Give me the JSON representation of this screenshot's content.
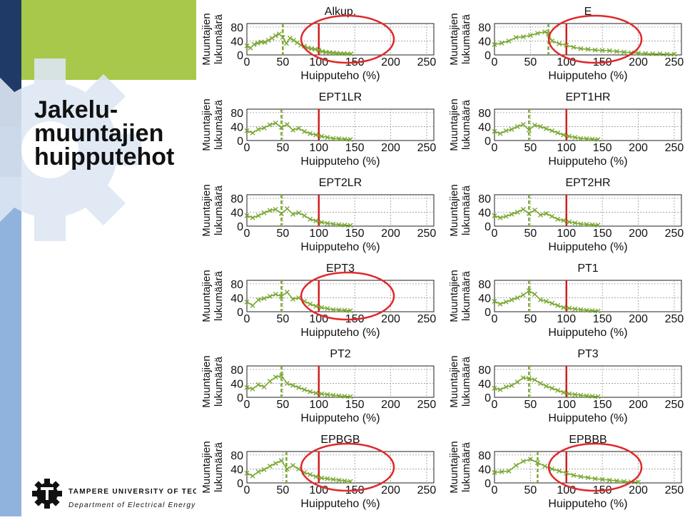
{
  "slide": {
    "title_lines": [
      "Jakelu-",
      "muuntajien",
      "huipputehot"
    ]
  },
  "logo": {
    "line1": "TAMPERE UNIVERSITY OF TECHNO",
    "line2": "Department of Electrical Energy En"
  },
  "colors": {
    "series": "#7aa832",
    "marker_line": "#d11f1f",
    "ellipse": "#e0282a",
    "left_dark": "#1f3a66",
    "left_mid": "#2e5c9a",
    "left_light": "#8fb3dc",
    "left_green": "#a7c84a"
  },
  "chart_data": [
    {
      "type": "line",
      "title": "Alkup.",
      "xlabel": "Huipputeho (%)",
      "ylabel": "Muuntajien lukumäärä",
      "xticks": [
        0,
        50,
        100,
        150,
        200,
        250
      ],
      "yticks": [
        0,
        40,
        80
      ],
      "xlim": [
        0,
        260
      ],
      "ylim": [
        0,
        90
      ],
      "grid": true,
      "green_dashed_x": 50,
      "red_line_x": 100,
      "highlight_ellipse": true,
      "x": [
        0,
        5,
        10,
        15,
        20,
        25,
        30,
        35,
        40,
        45,
        50,
        55,
        60,
        65,
        70,
        75,
        80,
        85,
        90,
        95,
        100,
        105,
        110,
        115,
        120,
        125,
        130,
        135,
        140,
        145
      ],
      "values": [
        26,
        20,
        30,
        34,
        37,
        36,
        42,
        48,
        55,
        60,
        50,
        33,
        48,
        42,
        35,
        28,
        25,
        20,
        18,
        16,
        14,
        10,
        8,
        7,
        6,
        5,
        4,
        4,
        3,
        3
      ]
    },
    {
      "type": "line",
      "title": "E",
      "xlabel": "Huipputeho (%)",
      "ylabel": "Muuntajien lukumäärä",
      "xticks": [
        0,
        50,
        100,
        150,
        200,
        250
      ],
      "yticks": [
        0,
        40,
        80
      ],
      "xlim": [
        0,
        260
      ],
      "ylim": [
        0,
        90
      ],
      "grid": true,
      "green_dashed_x": 75,
      "red_line_x": 100,
      "highlight_ellipse": true,
      "x": [
        0,
        10,
        20,
        30,
        40,
        50,
        60,
        70,
        75,
        80,
        90,
        100,
        110,
        120,
        130,
        140,
        150,
        160,
        170,
        180,
        190,
        200,
        210,
        220,
        230,
        240,
        250
      ],
      "values": [
        30,
        34,
        40,
        50,
        52,
        56,
        62,
        66,
        60,
        40,
        32,
        28,
        22,
        18,
        16,
        14,
        13,
        12,
        10,
        8,
        6,
        5,
        4,
        3,
        3,
        2,
        2
      ]
    },
    {
      "type": "line",
      "title": "EPT1LR",
      "xlabel": "Huipputeho (%)",
      "ylabel": "Muuntajien lukumäärä",
      "xticks": [
        0,
        50,
        100,
        150,
        200,
        250
      ],
      "yticks": [
        0,
        40,
        80
      ],
      "xlim": [
        0,
        260
      ],
      "ylim": [
        0,
        90
      ],
      "grid": true,
      "green_dashed_x": 48,
      "red_line_x": 100,
      "highlight_ellipse": false,
      "x": [
        0,
        8,
        16,
        24,
        32,
        40,
        48,
        56,
        64,
        72,
        80,
        88,
        96,
        104,
        112,
        120,
        128,
        136,
        144
      ],
      "values": [
        28,
        22,
        32,
        36,
        45,
        50,
        38,
        46,
        30,
        35,
        26,
        20,
        16,
        12,
        9,
        6,
        5,
        4,
        3
      ]
    },
    {
      "type": "line",
      "title": "EPT1HR",
      "xlabel": "Huipputeho (%)",
      "ylabel": "Muuntajien lukumäärä",
      "xticks": [
        0,
        50,
        100,
        150,
        200,
        250
      ],
      "yticks": [
        0,
        40,
        80
      ],
      "xlim": [
        0,
        260
      ],
      "ylim": [
        0,
        90
      ],
      "grid": true,
      "green_dashed_x": 48,
      "red_line_x": 100,
      "highlight_ellipse": false,
      "x": [
        0,
        8,
        16,
        24,
        32,
        40,
        48,
        56,
        64,
        72,
        80,
        88,
        96,
        104,
        112,
        120,
        128,
        136,
        144
      ],
      "values": [
        26,
        20,
        28,
        32,
        40,
        46,
        30,
        44,
        40,
        34,
        28,
        22,
        16,
        12,
        9,
        6,
        5,
        4,
        3
      ]
    },
    {
      "type": "line",
      "title": "EPT2LR",
      "xlabel": "Huipputeho (%)",
      "ylabel": "Muuntajien lukumäärä",
      "xticks": [
        0,
        50,
        100,
        150,
        200,
        250
      ],
      "yticks": [
        0,
        40,
        80
      ],
      "xlim": [
        0,
        260
      ],
      "ylim": [
        0,
        90
      ],
      "grid": true,
      "green_dashed_x": 48,
      "red_line_x": 100,
      "highlight_ellipse": false,
      "x": [
        0,
        8,
        16,
        24,
        32,
        40,
        48,
        56,
        64,
        72,
        80,
        88,
        96,
        104,
        112,
        120,
        128,
        136,
        144
      ],
      "values": [
        30,
        24,
        30,
        38,
        45,
        48,
        36,
        50,
        34,
        38,
        30,
        20,
        15,
        11,
        8,
        6,
        4,
        3,
        2
      ]
    },
    {
      "type": "line",
      "title": "EPT2HR",
      "xlabel": "Huipputeho (%)",
      "ylabel": "Muuntajien lukumäärä",
      "xticks": [
        0,
        50,
        100,
        150,
        200,
        250
      ],
      "yticks": [
        0,
        40,
        80
      ],
      "xlim": [
        0,
        260
      ],
      "ylim": [
        0,
        90
      ],
      "grid": true,
      "green_dashed_x": 48,
      "red_line_x": 100,
      "highlight_ellipse": false,
      "x": [
        0,
        8,
        16,
        24,
        32,
        40,
        48,
        56,
        64,
        72,
        80,
        88,
        96,
        104,
        112,
        120,
        128,
        136,
        144
      ],
      "values": [
        30,
        24,
        28,
        34,
        40,
        48,
        36,
        46,
        32,
        36,
        28,
        20,
        16,
        12,
        9,
        6,
        5,
        4,
        3
      ]
    },
    {
      "type": "line",
      "title": "EPT3",
      "xlabel": "Huipputeho (%)",
      "ylabel": "Muuntajien lukumäärä",
      "xticks": [
        0,
        50,
        100,
        150,
        200,
        250
      ],
      "yticks": [
        0,
        40,
        80
      ],
      "xlim": [
        0,
        260
      ],
      "ylim": [
        0,
        90
      ],
      "grid": true,
      "green_dashed_x": 48,
      "red_line_x": 100,
      "highlight_ellipse": true,
      "x": [
        0,
        8,
        16,
        24,
        32,
        40,
        48,
        56,
        64,
        72,
        80,
        88,
        96,
        104,
        112,
        120,
        128,
        136,
        144
      ],
      "values": [
        28,
        18,
        34,
        38,
        44,
        50,
        44,
        56,
        36,
        40,
        30,
        22,
        16,
        12,
        9,
        6,
        5,
        4,
        3
      ]
    },
    {
      "type": "line",
      "title": "PT1",
      "xlabel": "Huipputeho (%)",
      "ylabel": "Muuntajien lukumäärä",
      "xticks": [
        0,
        50,
        100,
        150,
        200,
        250
      ],
      "yticks": [
        0,
        40,
        80
      ],
      "xlim": [
        0,
        260
      ],
      "ylim": [
        0,
        90
      ],
      "grid": true,
      "green_dashed_x": 48,
      "red_line_x": 100,
      "highlight_ellipse": false,
      "x": [
        0,
        8,
        16,
        24,
        32,
        40,
        48,
        56,
        64,
        72,
        80,
        88,
        96,
        104,
        112,
        120,
        128,
        136,
        144
      ],
      "values": [
        30,
        22,
        28,
        34,
        40,
        48,
        60,
        50,
        34,
        30,
        24,
        18,
        12,
        10,
        8,
        6,
        4,
        3,
        2
      ]
    },
    {
      "type": "line",
      "title": "PT2",
      "xlabel": "Huipputeho (%)",
      "ylabel": "Muuntajien lukumäärä",
      "xticks": [
        0,
        50,
        100,
        150,
        200,
        250
      ],
      "yticks": [
        0,
        40,
        80
      ],
      "xlim": [
        0,
        260
      ],
      "ylim": [
        0,
        90
      ],
      "grid": true,
      "green_dashed_x": 48,
      "red_line_x": 100,
      "highlight_ellipse": false,
      "x": [
        0,
        8,
        16,
        24,
        32,
        40,
        48,
        56,
        64,
        72,
        80,
        88,
        96,
        104,
        112,
        120,
        128,
        136,
        144
      ],
      "values": [
        28,
        24,
        36,
        30,
        46,
        58,
        62,
        40,
        34,
        28,
        22,
        16,
        12,
        10,
        8,
        6,
        4,
        3,
        2
      ]
    },
    {
      "type": "line",
      "title": "PT3",
      "xlabel": "Huipputeho (%)",
      "ylabel": "Muuntajien lukumäärä",
      "xticks": [
        0,
        50,
        100,
        150,
        200,
        250
      ],
      "yticks": [
        0,
        40,
        80
      ],
      "xlim": [
        0,
        260
      ],
      "ylim": [
        0,
        90
      ],
      "grid": true,
      "green_dashed_x": 48,
      "red_line_x": 100,
      "highlight_ellipse": false,
      "x": [
        0,
        8,
        16,
        24,
        32,
        40,
        48,
        56,
        64,
        72,
        80,
        88,
        96,
        104,
        112,
        120,
        128,
        136,
        144
      ],
      "values": [
        26,
        22,
        30,
        34,
        44,
        56,
        54,
        50,
        40,
        32,
        26,
        20,
        14,
        10,
        8,
        6,
        4,
        3,
        2
      ]
    },
    {
      "type": "line",
      "title": "EPBGB",
      "xlabel": "Huipputeho (%)",
      "ylabel": "Muuntajien lukumäärä",
      "xticks": [
        0,
        50,
        100,
        150,
        200,
        250
      ],
      "yticks": [
        0,
        40,
        80
      ],
      "xlim": [
        0,
        260
      ],
      "ylim": [
        0,
        90
      ],
      "grid": true,
      "green_dashed_x": 55,
      "red_line_x": 100,
      "highlight_ellipse": true,
      "x": [
        0,
        8,
        16,
        24,
        32,
        40,
        48,
        56,
        64,
        72,
        80,
        88,
        96,
        104,
        112,
        120,
        128,
        136,
        144
      ],
      "values": [
        28,
        20,
        32,
        38,
        48,
        56,
        64,
        40,
        50,
        40,
        30,
        24,
        18,
        14,
        12,
        10,
        8,
        6,
        4
      ]
    },
    {
      "type": "line",
      "title": "EPBBB",
      "xlabel": "Huipputeho (%)",
      "ylabel": "Muuntajien lukumäärä",
      "xticks": [
        0,
        50,
        100,
        150,
        200,
        250
      ],
      "yticks": [
        0,
        40,
        80
      ],
      "xlim": [
        0,
        260
      ],
      "ylim": [
        0,
        90
      ],
      "grid": true,
      "green_dashed_x": 60,
      "red_line_x": 100,
      "highlight_ellipse": true,
      "x": [
        0,
        10,
        20,
        30,
        40,
        50,
        60,
        70,
        80,
        90,
        100,
        110,
        120,
        130,
        140,
        150,
        160,
        170,
        180,
        190,
        200
      ],
      "values": [
        30,
        32,
        34,
        50,
        62,
        68,
        58,
        48,
        40,
        34,
        28,
        22,
        18,
        15,
        12,
        10,
        8,
        6,
        4,
        3,
        2
      ]
    }
  ]
}
